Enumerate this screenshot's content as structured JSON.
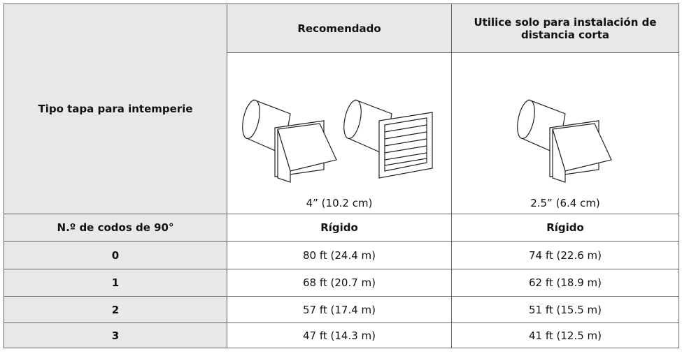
{
  "table": {
    "header": {
      "row_label": "Tipo tapa para intemperie",
      "columns": [
        "Recomendado",
        "Utilice solo para instalación de distancia corta"
      ],
      "sizes": [
        "4” (10.2 cm)",
        "2.5” (6.4 cm)"
      ]
    },
    "subheader": {
      "label": "N.º de codos de 90°",
      "columns": [
        "Rígido",
        "Rígido"
      ]
    },
    "rows": [
      [
        "0",
        "80 ft (24.4 m)",
        "74 ft (22.6 m)"
      ],
      [
        "1",
        "68 ft (20.7 m)",
        "62 ft (18.9 m)"
      ],
      [
        "2",
        "57 ft (17.4 m)",
        "51 ft (15.5 m)"
      ],
      [
        "3",
        "47 ft (14.3 m)",
        "41 ft (12.5 m)"
      ]
    ]
  }
}
